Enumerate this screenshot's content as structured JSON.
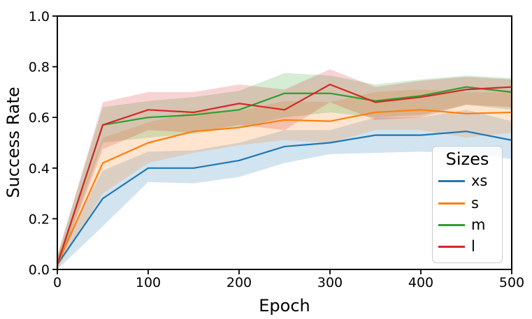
{
  "chart_data": {
    "type": "line",
    "title": "",
    "xlabel": "Epoch",
    "ylabel": "Success Rate",
    "xlim": [
      0,
      500
    ],
    "ylim": [
      0.0,
      1.0
    ],
    "x_ticks": [
      "0",
      "100",
      "200",
      "300",
      "400",
      "500"
    ],
    "x_tick_values": [
      0,
      100,
      200,
      300,
      400,
      500
    ],
    "y_ticks": [
      "0.0",
      "0.2",
      "0.4",
      "0.6",
      "0.8",
      "1.0"
    ],
    "y_tick_values": [
      0.0,
      0.2,
      0.4,
      0.6,
      0.8,
      1.0
    ],
    "grid": false,
    "band_alpha": 0.2,
    "axis_color": "#000000",
    "legend": {
      "title": "Sizes",
      "position": "lower right"
    },
    "x": [
      0,
      50,
      100,
      150,
      200,
      250,
      300,
      350,
      400,
      450,
      500
    ],
    "series": [
      {
        "name": "xs",
        "color": "#1f77b4",
        "values": [
          0.02,
          0.28,
          0.4,
          0.4,
          0.43,
          0.485,
          0.5,
          0.53,
          0.53,
          0.545,
          0.51
        ],
        "band_lower": [
          0.0,
          0.17,
          0.345,
          0.34,
          0.365,
          0.42,
          0.455,
          0.46,
          0.465,
          0.46,
          0.435
        ],
        "band_upper": [
          0.05,
          0.39,
          0.465,
          0.47,
          0.5,
          0.55,
          0.55,
          0.6,
          0.6,
          0.63,
          0.585
        ]
      },
      {
        "name": "s",
        "color": "#ff7f0e",
        "values": [
          0.02,
          0.42,
          0.5,
          0.545,
          0.56,
          0.59,
          0.585,
          0.62,
          0.63,
          0.615,
          0.62
        ],
        "band_lower": [
          0.0,
          0.3,
          0.42,
          0.46,
          0.49,
          0.51,
          0.5,
          0.55,
          0.55,
          0.52,
          0.54
        ],
        "band_upper": [
          0.05,
          0.52,
          0.58,
          0.625,
          0.625,
          0.665,
          0.66,
          0.7,
          0.71,
          0.7,
          0.7
        ]
      },
      {
        "name": "m",
        "color": "#2ca02c",
        "values": [
          0.02,
          0.57,
          0.6,
          0.61,
          0.63,
          0.695,
          0.695,
          0.665,
          0.685,
          0.72,
          0.7
        ],
        "band_lower": [
          0.0,
          0.5,
          0.52,
          0.535,
          0.56,
          0.6,
          0.62,
          0.6,
          0.61,
          0.65,
          0.63
        ],
        "band_upper": [
          0.06,
          0.64,
          0.665,
          0.68,
          0.705,
          0.775,
          0.765,
          0.73,
          0.75,
          0.765,
          0.755
        ]
      },
      {
        "name": "l",
        "color": "#d62728",
        "values": [
          0.02,
          0.57,
          0.63,
          0.62,
          0.655,
          0.63,
          0.73,
          0.66,
          0.68,
          0.71,
          0.72
        ],
        "band_lower": [
          0.0,
          0.475,
          0.55,
          0.54,
          0.57,
          0.55,
          0.66,
          0.59,
          0.6,
          0.65,
          0.64
        ],
        "band_upper": [
          0.05,
          0.66,
          0.7,
          0.7,
          0.73,
          0.71,
          0.79,
          0.72,
          0.745,
          0.76,
          0.75
        ]
      }
    ]
  }
}
